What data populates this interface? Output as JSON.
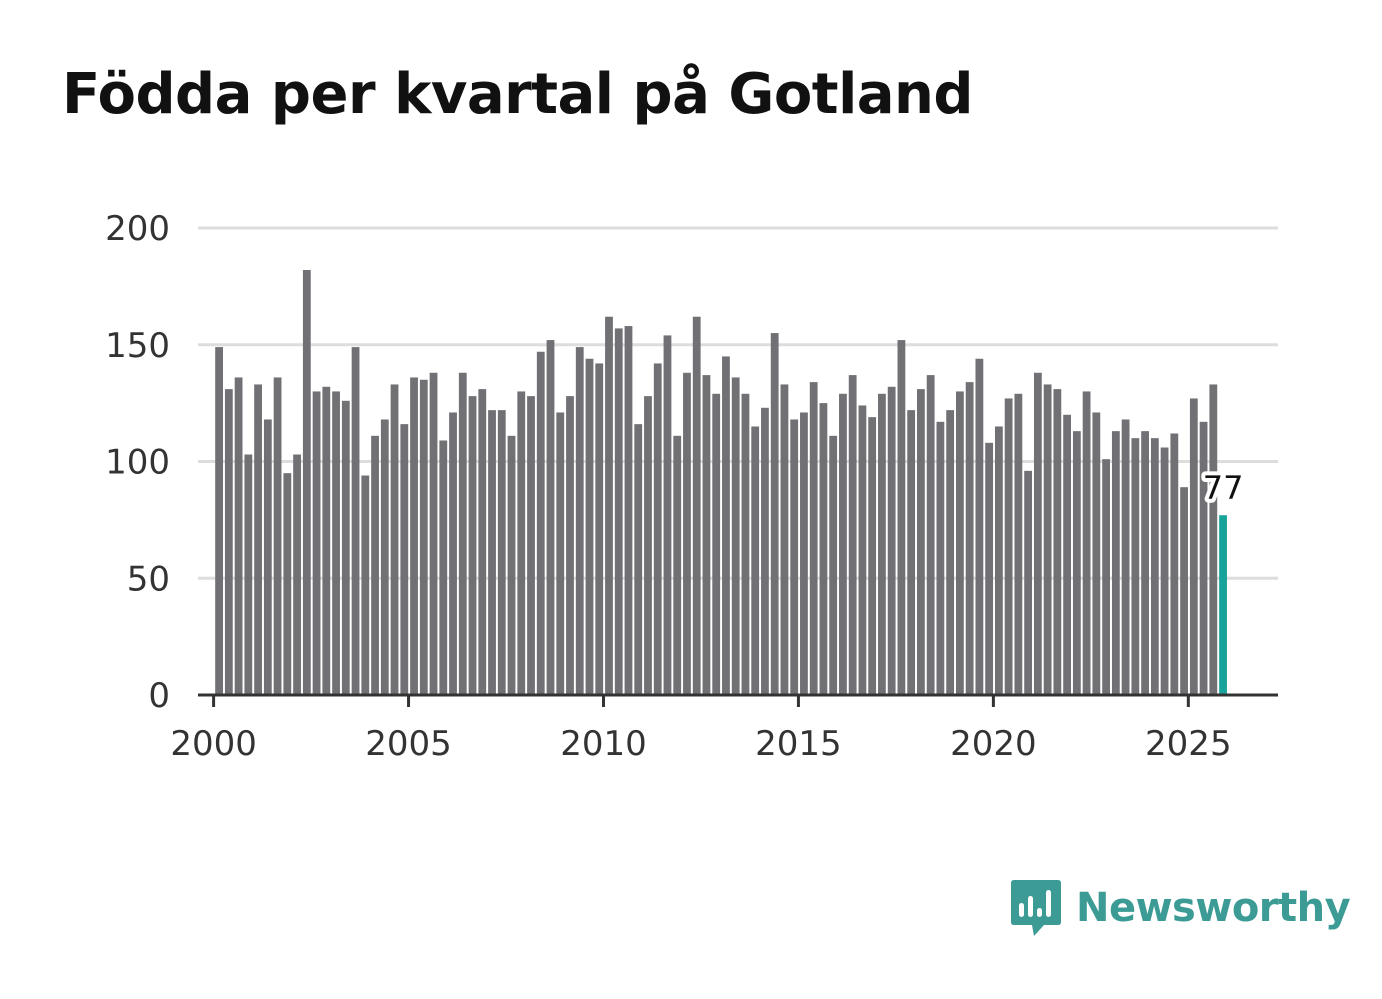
{
  "brand": {
    "name": "Newsworthy",
    "color": "#3c9c95",
    "icon": "newsworthy-logo-icon"
  },
  "chart_data": {
    "type": "bar",
    "title": "Födda per kvartal på Gotland",
    "xlabel": "",
    "ylabel": "",
    "ylim": [
      0,
      200
    ],
    "yticks": [
      0,
      50,
      100,
      150,
      200
    ],
    "xticks": [
      2000,
      2005,
      2010,
      2015,
      2020,
      2025
    ],
    "xlim": [
      1999.6,
      2027.3
    ],
    "bar_color": "#717075",
    "highlight_color": "#1aa39b",
    "grid": true,
    "annotation": {
      "label": "77",
      "index": 103
    },
    "start_year": 2000,
    "values": [
      149,
      131,
      136,
      103,
      133,
      118,
      136,
      95,
      103,
      182,
      130,
      132,
      130,
      126,
      149,
      94,
      111,
      118,
      133,
      116,
      136,
      135,
      138,
      109,
      121,
      138,
      128,
      131,
      122,
      122,
      111,
      130,
      128,
      147,
      152,
      121,
      128,
      149,
      144,
      142,
      162,
      157,
      158,
      116,
      128,
      142,
      154,
      111,
      138,
      162,
      137,
      129,
      145,
      136,
      129,
      115,
      123,
      155,
      133,
      118,
      121,
      134,
      125,
      111,
      129,
      137,
      124,
      119,
      129,
      132,
      152,
      122,
      131,
      137,
      117,
      122,
      130,
      134,
      144,
      108,
      115,
      127,
      129,
      96,
      138,
      133,
      131,
      120,
      113,
      130,
      121,
      101,
      113,
      118,
      110,
      113,
      110,
      106,
      112,
      89,
      127,
      117,
      133,
      77
    ]
  }
}
